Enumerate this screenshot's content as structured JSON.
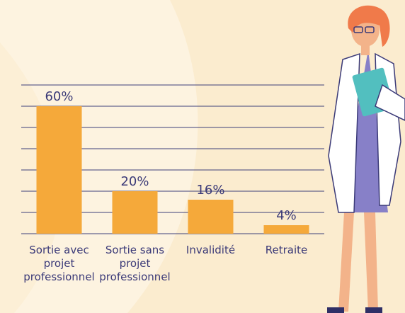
{
  "chart_data": {
    "type": "bar",
    "categories": [
      "Sortie avec projet professionnel",
      "Sortie sans projet professionnel",
      "Invalidité",
      "Retraite"
    ],
    "values": [
      60,
      20,
      16,
      4
    ],
    "value_labels": [
      "60%",
      "20%",
      "16%",
      "4%"
    ],
    "color": "#f5a93a",
    "ylim": [
      0,
      70
    ],
    "yticks": [
      0,
      10,
      20,
      30,
      40,
      50,
      60,
      70
    ],
    "grid": true
  }
}
